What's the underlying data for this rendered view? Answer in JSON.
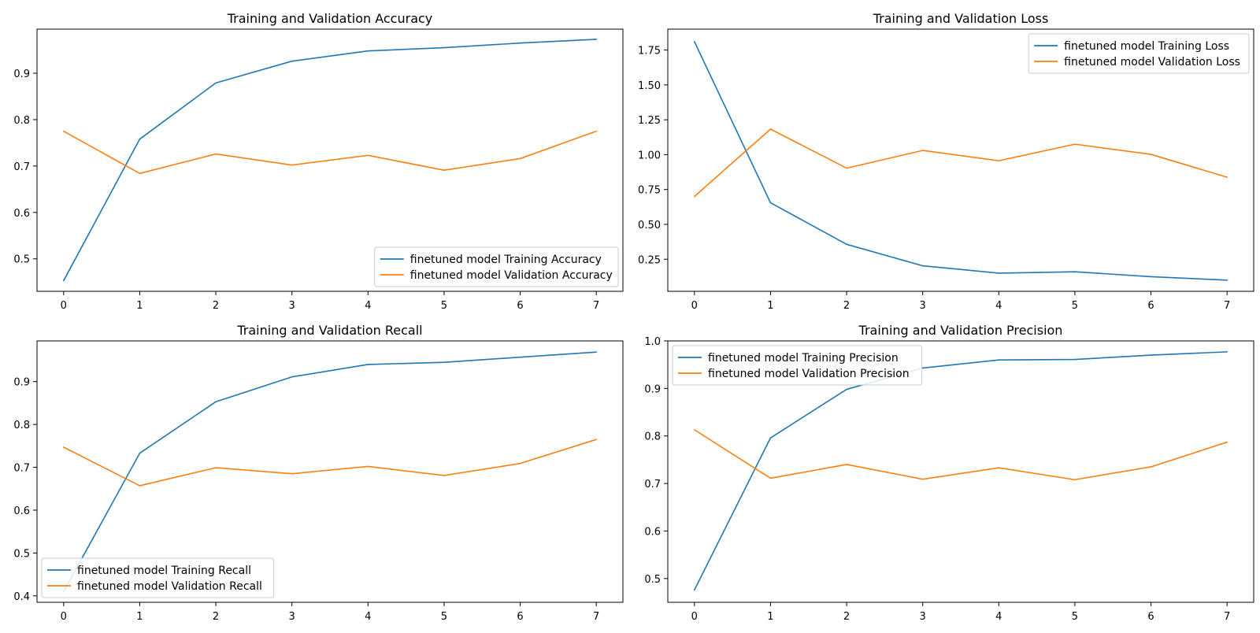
{
  "colors": {
    "training": "#1f77b4",
    "validation": "#ff7f0e",
    "axis": "#000000",
    "legend_border": "#cccccc"
  },
  "chart_data": [
    {
      "type": "line",
      "title": "Training and Validation Accuracy",
      "xlabel": "",
      "ylabel": "",
      "x": [
        0,
        1,
        2,
        3,
        4,
        5,
        6,
        7
      ],
      "xlim": [
        -0.35,
        7.35
      ],
      "ylim": [
        0.43,
        0.995
      ],
      "xticks": [
        0,
        1,
        2,
        3,
        4,
        5,
        6,
        7
      ],
      "yticks": [
        0.5,
        0.6,
        0.7,
        0.8,
        0.9
      ],
      "ytick_labels": [
        "0.5",
        "0.6",
        "0.7",
        "0.8",
        "0.9"
      ],
      "grid": false,
      "legend_position": "lower-right",
      "series": [
        {
          "name": "finetuned model Training Accuracy",
          "values": [
            0.453,
            0.758,
            0.879,
            0.926,
            0.948,
            0.955,
            0.965,
            0.973
          ]
        },
        {
          "name": "finetuned model Validation Accuracy",
          "values": [
            0.775,
            0.684,
            0.726,
            0.702,
            0.723,
            0.691,
            0.716,
            0.775
          ]
        }
      ]
    },
    {
      "type": "line",
      "title": "Training and Validation Loss",
      "xlabel": "",
      "ylabel": "",
      "x": [
        0,
        1,
        2,
        3,
        4,
        5,
        6,
        7
      ],
      "xlim": [
        -0.35,
        7.35
      ],
      "ylim": [
        0.02,
        1.9
      ],
      "xticks": [
        0,
        1,
        2,
        3,
        4,
        5,
        6,
        7
      ],
      "yticks": [
        0.25,
        0.5,
        0.75,
        1.0,
        1.25,
        1.5,
        1.75
      ],
      "ytick_labels": [
        "0.25",
        "0.50",
        "0.75",
        "1.00",
        "1.25",
        "1.50",
        "1.75"
      ],
      "grid": false,
      "legend_position": "upper-right",
      "series": [
        {
          "name": "finetuned model Training Loss",
          "values": [
            1.81,
            0.655,
            0.357,
            0.203,
            0.15,
            0.16,
            0.125,
            0.1
          ]
        },
        {
          "name": "finetuned model Validation Loss",
          "values": [
            0.7,
            1.183,
            0.903,
            1.03,
            0.956,
            1.075,
            1.002,
            0.838
          ]
        }
      ]
    },
    {
      "type": "line",
      "title": "Training and Validation Recall",
      "xlabel": "",
      "ylabel": "",
      "x": [
        0,
        1,
        2,
        3,
        4,
        5,
        6,
        7
      ],
      "xlim": [
        -0.35,
        7.35
      ],
      "ylim": [
        0.385,
        0.995
      ],
      "xticks": [
        0,
        1,
        2,
        3,
        4,
        5,
        6,
        7
      ],
      "yticks": [
        0.4,
        0.5,
        0.6,
        0.7,
        0.8,
        0.9
      ],
      "ytick_labels": [
        "0.4",
        "0.5",
        "0.6",
        "0.7",
        "0.8",
        "0.9"
      ],
      "grid": false,
      "legend_position": "lower-left",
      "series": [
        {
          "name": "finetuned model Training Recall",
          "values": [
            0.41,
            0.733,
            0.853,
            0.911,
            0.94,
            0.945,
            0.957,
            0.969
          ]
        },
        {
          "name": "finetuned model Validation Recall",
          "values": [
            0.747,
            0.657,
            0.699,
            0.685,
            0.702,
            0.681,
            0.709,
            0.765
          ]
        }
      ]
    },
    {
      "type": "line",
      "title": "Training and Validation Precision",
      "xlabel": "",
      "ylabel": "",
      "x": [
        0,
        1,
        2,
        3,
        4,
        5,
        6,
        7
      ],
      "xlim": [
        -0.35,
        7.35
      ],
      "ylim": [
        0.45,
        1.0
      ],
      "xticks": [
        0,
        1,
        2,
        3,
        4,
        5,
        6,
        7
      ],
      "yticks": [
        0.5,
        0.6,
        0.7,
        0.8,
        0.9,
        1.0
      ],
      "ytick_labels": [
        "0.5",
        "0.6",
        "0.7",
        "0.8",
        "0.9",
        "1.0"
      ],
      "grid": false,
      "legend_position": "upper-left",
      "series": [
        {
          "name": "finetuned model Training Precision",
          "values": [
            0.476,
            0.796,
            0.898,
            0.943,
            0.96,
            0.961,
            0.97,
            0.977
          ]
        },
        {
          "name": "finetuned model Validation Precision",
          "values": [
            0.813,
            0.711,
            0.74,
            0.709,
            0.733,
            0.708,
            0.735,
            0.787
          ]
        }
      ]
    }
  ]
}
